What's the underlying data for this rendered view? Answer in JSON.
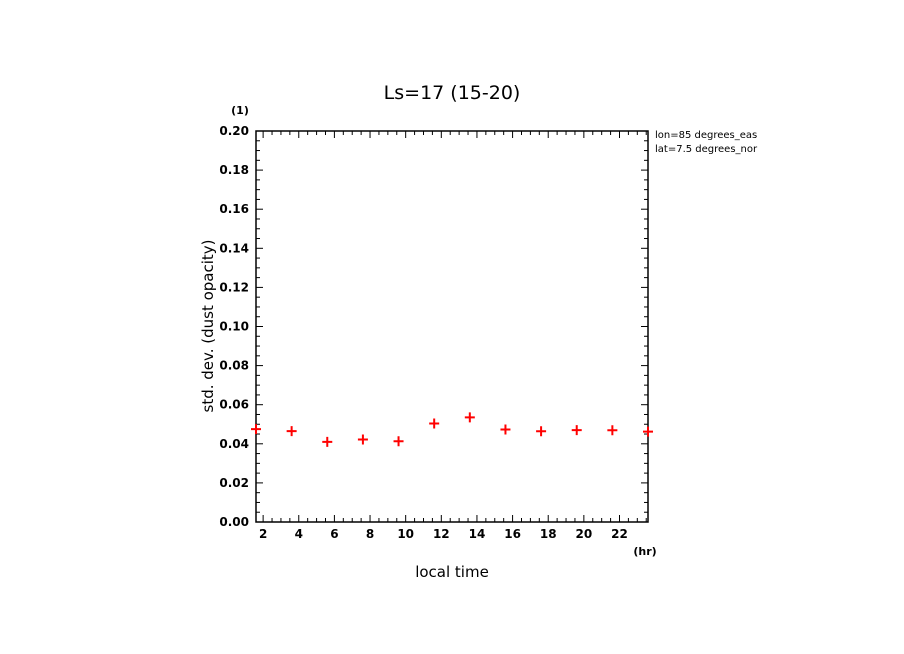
{
  "chart_data": {
    "type": "scatter",
    "title": "Ls=17 (15-20)",
    "xlabel": "local time",
    "ylabel": "std. dev. (dust opacity)",
    "x_unit": "(hr)",
    "y_unit": "(1)",
    "xlim": [
      1.6,
      23.6
    ],
    "ylim": [
      0.0,
      0.2
    ],
    "x_ticks": [
      "2",
      "4",
      "6",
      "8",
      "10",
      "12",
      "14",
      "16",
      "18",
      "20",
      "22"
    ],
    "x_tick_values": [
      2,
      4,
      6,
      8,
      10,
      12,
      14,
      16,
      18,
      20,
      22
    ],
    "y_ticks": [
      "0.00",
      "0.02",
      "0.04",
      "0.06",
      "0.08",
      "0.10",
      "0.12",
      "0.14",
      "0.16",
      "0.18",
      "0.20"
    ],
    "y_tick_values": [
      0.0,
      0.02,
      0.04,
      0.06,
      0.08,
      0.1,
      0.12,
      0.14,
      0.16,
      0.18,
      0.2
    ],
    "annotations": [
      "lon=85 degrees_eas",
      "lat=7.5 degrees_nor"
    ],
    "grid": false,
    "marker_color": "#ff0000",
    "series": [
      {
        "x": [
          1.6,
          3.6,
          5.6,
          7.6,
          9.6,
          11.6,
          13.6,
          15.6,
          17.6,
          19.6,
          21.6,
          23.6
        ],
        "y": [
          0.0475,
          0.0465,
          0.041,
          0.0422,
          0.0413,
          0.0504,
          0.0535,
          0.0473,
          0.0464,
          0.047,
          0.0469,
          0.0462
        ]
      }
    ]
  }
}
